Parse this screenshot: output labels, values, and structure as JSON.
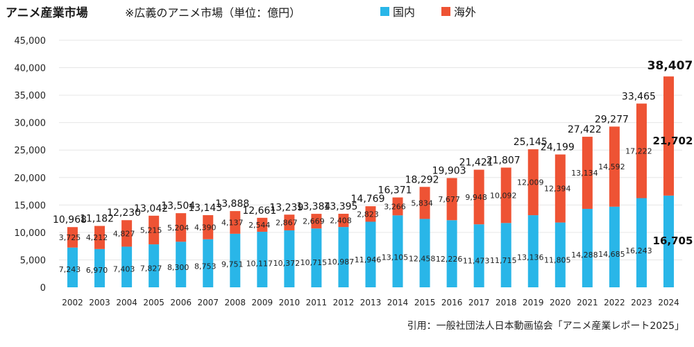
{
  "title": "アニメ産業市場",
  "subtitle": "※広義のアニメ市場（単位：億円）",
  "source": "引用：一般社団法人日本動画協会「アニメ産業レポート2025」",
  "colors": {
    "domestic": "#29B6E8",
    "overseas": "#EE5334"
  },
  "chart_data": {
    "type": "bar",
    "stacked": true,
    "title": "アニメ産業市場",
    "unit": "億円",
    "categories": [
      "2002",
      "2003",
      "2004",
      "2005",
      "2006",
      "2007",
      "2008",
      "2009",
      "2010",
      "2011",
      "2012",
      "2013",
      "2014",
      "2015",
      "2016",
      "2017",
      "2018",
      "2019",
      "2020",
      "2021",
      "2022",
      "2023",
      "2024"
    ],
    "series": [
      {
        "name": "国内",
        "values": [
          7243,
          6970,
          7403,
          7827,
          8300,
          8753,
          9751,
          10117,
          10372,
          10715,
          10987,
          11946,
          13105,
          12458,
          12226,
          11473,
          11715,
          13136,
          11805,
          14288,
          14685,
          16243,
          16705
        ]
      },
      {
        "name": "海外",
        "values": [
          3725,
          4212,
          4827,
          5215,
          5204,
          4390,
          4137,
          2544,
          2867,
          2669,
          2408,
          2823,
          3266,
          5834,
          7677,
          9948,
          10092,
          12009,
          12394,
          13134,
          14592,
          17222,
          21702
        ]
      }
    ],
    "totals": [
      10968,
      11182,
      12230,
      13042,
      13504,
      13143,
      13888,
      12661,
      13239,
      13384,
      13395,
      14769,
      16371,
      18292,
      19903,
      21421,
      21807,
      25145,
      24199,
      27422,
      29277,
      33465,
      38407
    ],
    "y_ticks": [
      "0",
      "5,000",
      "10,000",
      "15,000",
      "20,000",
      "25,000",
      "30,000",
      "35,000",
      "40,000",
      "45,000"
    ],
    "ylim": [
      0,
      45000
    ],
    "legend": [
      "国内",
      "海外"
    ]
  }
}
